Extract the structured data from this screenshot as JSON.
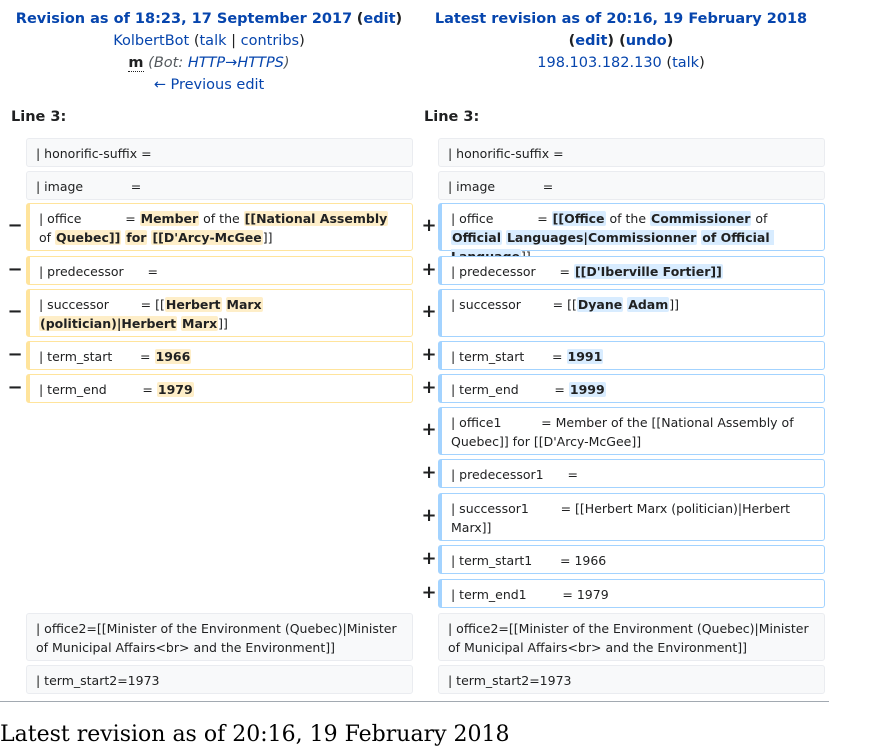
{
  "left_header": {
    "title": "Revision as of 18:23, 17 September 2017",
    "edit": "edit",
    "user": "KolbertBot",
    "talk": "talk",
    "sep": "|",
    "contribs": "contribs",
    "minor": "m",
    "summary_prefix": "Bot: ",
    "summary_link": "HTTP→HTTPS",
    "prev": "← Previous edit"
  },
  "right_header": {
    "title": "Latest revision as of 20:16, 19 February 2018",
    "edit": "edit",
    "undo": "undo",
    "user": "198.103.182.130",
    "talk": "talk"
  },
  "line_label_left": "Line 3:",
  "line_label_right": "Line 3:",
  "markers": {
    "minus": "−",
    "plus": "+"
  },
  "left_rows": [
    {
      "type": "ctx",
      "parts": [
        {
          "t": "| honorific-suffix ="
        }
      ]
    },
    {
      "type": "ctx",
      "parts": [
        {
          "t": "| image            ="
        }
      ]
    },
    {
      "type": "del",
      "parts": [
        {
          "t": "| office           = "
        },
        {
          "t": "Member",
          "h": true
        },
        {
          "t": " of the "
        },
        {
          "t": "[[National Assembly",
          "h": true
        },
        {
          "t": " of "
        },
        {
          "t": "Quebec]]",
          "h": true
        },
        {
          "t": " "
        },
        {
          "t": "for",
          "h": true
        },
        {
          "t": " "
        },
        {
          "t": "[[D'Arcy-McGee",
          "h": true
        },
        {
          "t": "]]"
        }
      ]
    },
    {
      "type": "del",
      "parts": [
        {
          "t": "| predecessor      ="
        }
      ]
    },
    {
      "type": "del",
      "parts": [
        {
          "t": "| successor        = [["
        },
        {
          "t": "Herbert",
          "h": true
        },
        {
          "t": " "
        },
        {
          "t": "Marx",
          "h": true
        },
        {
          "t": " "
        },
        {
          "t": "(politician)|Herbert",
          "h": true
        },
        {
          "t": " "
        },
        {
          "t": "Marx",
          "h": true
        },
        {
          "t": "]]"
        }
      ]
    },
    {
      "type": "del",
      "parts": [
        {
          "t": "| term_start       = "
        },
        {
          "t": "1966",
          "h": true
        }
      ]
    },
    {
      "type": "del",
      "parts": [
        {
          "t": "| term_end         = "
        },
        {
          "t": "1979",
          "h": true
        }
      ]
    },
    {
      "type": "ctx",
      "parts": [
        {
          "t": "| office2=[[Minister of the Environment (Quebec)|Minister of Municipal Affairs<br> and the Environment]]"
        }
      ]
    },
    {
      "type": "ctx",
      "parts": [
        {
          "t": "| term_start2=1973"
        }
      ]
    }
  ],
  "right_rows": [
    {
      "type": "ctx",
      "parts": [
        {
          "t": "| honorific-suffix ="
        }
      ]
    },
    {
      "type": "ctx",
      "parts": [
        {
          "t": "| image            ="
        }
      ]
    },
    {
      "type": "add",
      "parts": [
        {
          "t": "| office           = "
        },
        {
          "t": "[[Office",
          "h": true
        },
        {
          "t": " of the "
        },
        {
          "t": "Commissioner",
          "h": true
        },
        {
          "t": " of "
        },
        {
          "t": "Official",
          "h": true
        },
        {
          "t": " "
        },
        {
          "t": "Languages|Commissionner",
          "h": true
        },
        {
          "t": " "
        },
        {
          "t": "of Official Language",
          "h": true
        },
        {
          "t": "]]"
        }
      ]
    },
    {
      "type": "add",
      "parts": [
        {
          "t": "| predecessor      = "
        },
        {
          "t": "[[D'Iberville Fortier]]",
          "h": true
        }
      ]
    },
    {
      "type": "add",
      "parts": [
        {
          "t": "| successor        = [["
        },
        {
          "t": "Dyane",
          "h": true
        },
        {
          "t": " "
        },
        {
          "t": "Adam",
          "h": true
        },
        {
          "t": "]]"
        }
      ]
    },
    {
      "type": "add",
      "parts": [
        {
          "t": "| term_start       = "
        },
        {
          "t": "1991",
          "h": true
        }
      ]
    },
    {
      "type": "add",
      "parts": [
        {
          "t": "| term_end         = "
        },
        {
          "t": "1999",
          "h": true
        }
      ]
    },
    {
      "type": "add",
      "parts": [
        {
          "t": "| office1          = Member of the [[National Assembly of Quebec]] for [[D'Arcy-McGee]]"
        }
      ]
    },
    {
      "type": "add",
      "parts": [
        {
          "t": "| predecessor1      ="
        }
      ]
    },
    {
      "type": "add",
      "parts": [
        {
          "t": "| successor1        = [[Herbert Marx (politician)|Herbert Marx]]"
        }
      ]
    },
    {
      "type": "add",
      "parts": [
        {
          "t": "| term_start1       = 1966"
        }
      ]
    },
    {
      "type": "add",
      "parts": [
        {
          "t": "| term_end1         = 1979"
        }
      ]
    },
    {
      "type": "ctx",
      "parts": [
        {
          "t": "| office2=[[Minister of the Environment (Quebec)|Minister of Municipal Affairs<br> and the Environment]]"
        }
      ]
    },
    {
      "type": "ctx",
      "parts": [
        {
          "t": "| term_start2=1973"
        }
      ]
    }
  ],
  "footer_title": "Latest revision as of 20:16, 19 February 2018"
}
